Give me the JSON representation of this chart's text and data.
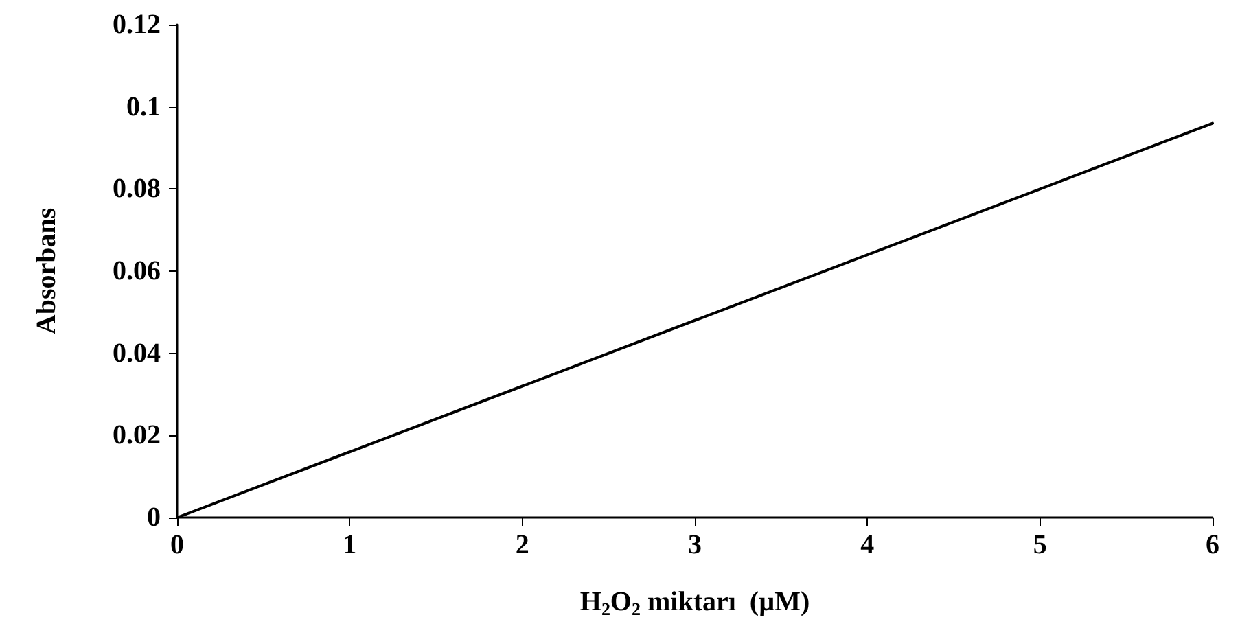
{
  "chart_data": {
    "type": "line",
    "xlabel": "H$_{2}$O$_{2}$ miktarı  (µM)",
    "ylabel": "Absorbans",
    "x": [
      0,
      6
    ],
    "series": [
      {
        "color": "#000000",
        "values": [
          0,
          0.096
        ]
      }
    ],
    "xlim": [
      0,
      6
    ],
    "xticks": [
      0,
      1,
      2,
      3,
      4,
      5,
      6
    ],
    "ylim": [
      0,
      0.12
    ],
    "yticks": [
      0,
      0.02,
      0.04,
      0.06,
      0.08,
      0.1,
      0.12
    ],
    "grid": false,
    "marker": "none",
    "line_style": "solid"
  }
}
